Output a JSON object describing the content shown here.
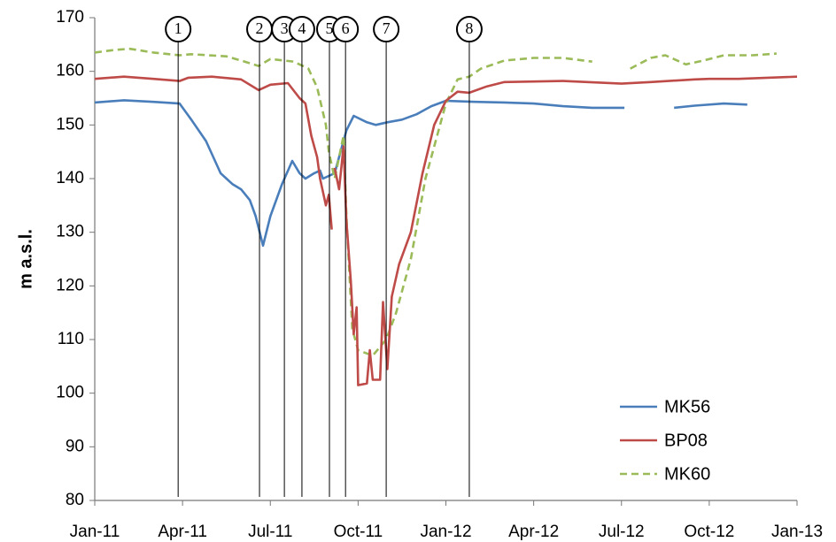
{
  "chart_data": {
    "type": "line",
    "ylabel": "m a.s.l.",
    "xlim": [
      0,
      24
    ],
    "xticks": [
      {
        "value": 0,
        "label": "Jan-11"
      },
      {
        "value": 3,
        "label": "Apr-11"
      },
      {
        "value": 6,
        "label": "Jul-11"
      },
      {
        "value": 9,
        "label": "Oct-11"
      },
      {
        "value": 12,
        "label": "Jan-12"
      },
      {
        "value": 15,
        "label": "Apr-12"
      },
      {
        "value": 18,
        "label": "Jul-12"
      },
      {
        "value": 21,
        "label": "Oct-12"
      },
      {
        "value": 24,
        "label": "Jan-13"
      }
    ],
    "ylim": [
      80,
      170
    ],
    "yticks": [
      80,
      90,
      100,
      110,
      120,
      130,
      140,
      150,
      160,
      170
    ],
    "grid": false,
    "legend": "lower right",
    "annotations": [
      {
        "label": "1",
        "x": 2.85
      },
      {
        "label": "2",
        "x": 5.63
      },
      {
        "label": "3",
        "x": 6.48
      },
      {
        "label": "4",
        "x": 7.08
      },
      {
        "label": "5",
        "x": 8.02
      },
      {
        "label": "6",
        "x": 8.57
      },
      {
        "label": "7",
        "x": 9.96
      },
      {
        "label": "8",
        "x": 12.8
      }
    ],
    "series": [
      {
        "name": "MK56",
        "color": "#4a7ebb",
        "linestyle": "solid",
        "x": [
          0,
          1,
          2,
          2.9,
          3.3,
          3.8,
          4.3,
          4.7,
          5.0,
          5.3,
          5.5,
          5.75,
          6.0,
          6.4,
          6.75,
          7.0,
          7.2,
          7.5,
          7.7,
          7.8,
          8.2,
          8.6,
          8.85,
          9.3,
          9.6,
          10,
          10.5,
          11,
          11.5,
          12,
          13,
          14,
          15,
          16,
          17,
          18.1,
          19,
          19.8,
          20.5,
          21.5,
          22.3
        ],
        "values": [
          154.2,
          154.6,
          154.3,
          154,
          151,
          147,
          141,
          139,
          138,
          136,
          133,
          127.5,
          133,
          139,
          143.3,
          141,
          140,
          141,
          141.5,
          140,
          141,
          149,
          151.7,
          150.5,
          150,
          150.5,
          151,
          152,
          153.5,
          154.5,
          154.3,
          154.2,
          154,
          153.5,
          153.2,
          153.2,
          null,
          153.2,
          153.6,
          154,
          153.8
        ]
      },
      {
        "name": "BP08",
        "color": "#be4b48",
        "linestyle": "solid",
        "x": [
          0,
          1,
          2,
          2.9,
          3.2,
          4,
          5,
          5.6,
          6,
          6.6,
          7.0,
          7.2,
          7.4,
          7.6,
          7.7,
          7.9,
          8.0,
          8.1,
          8.15,
          8.2,
          8.35,
          8.5,
          8.6,
          8.75,
          8.85,
          8.95,
          9.0,
          9.3,
          9.4,
          9.5,
          9.75,
          9.85,
          10.0,
          10.15,
          10.4,
          10.8,
          11.2,
          11.6,
          12,
          12.4,
          12.8,
          13.4,
          14,
          16,
          18,
          19,
          20.5,
          21,
          22,
          24
        ],
        "values": [
          158.6,
          159,
          158.6,
          158.2,
          158.8,
          159,
          158.5,
          156.5,
          157.5,
          157.8,
          155,
          154,
          148,
          144,
          140,
          135,
          137,
          130.5,
          null,
          142,
          138,
          146,
          132,
          121,
          111,
          116,
          101.5,
          101.8,
          108,
          102.5,
          102.5,
          117,
          104.5,
          118,
          124,
          130,
          141,
          150,
          154.5,
          156.2,
          156,
          157.2,
          158,
          158.2,
          157.7,
          158,
          158.5,
          158.6,
          158.6,
          159
        ]
      },
      {
        "name": "MK60",
        "color": "#9bbb59",
        "linestyle": "dashed",
        "x": [
          0,
          0.7,
          1.2,
          2,
          2.9,
          3.3,
          4.5,
          5,
          5.6,
          6,
          6.8,
          7.3,
          7.6,
          7.9,
          8.0,
          8.2,
          8.5,
          8.6,
          8.8,
          9.0,
          9.5,
          9.96,
          10.3,
          10.8,
          11.3,
          11.7,
          12.0,
          12.4,
          12.8,
          13.2,
          14,
          15,
          16,
          17,
          17.7,
          18.3,
          19,
          19.5,
          20.2,
          20.8,
          21.5,
          22.5,
          23.3
        ],
        "values": [
          163.5,
          164,
          164.2,
          163.5,
          163,
          163.2,
          162.8,
          162,
          161,
          162.3,
          161.8,
          160.5,
          157,
          150,
          145,
          140,
          148,
          133,
          112,
          108,
          107,
          110,
          115,
          125,
          140,
          148,
          154,
          158.5,
          159,
          160.5,
          162,
          162.5,
          162.5,
          161.8,
          null,
          160.5,
          162.5,
          163,
          161.3,
          162,
          163,
          163,
          163.3
        ]
      }
    ]
  }
}
